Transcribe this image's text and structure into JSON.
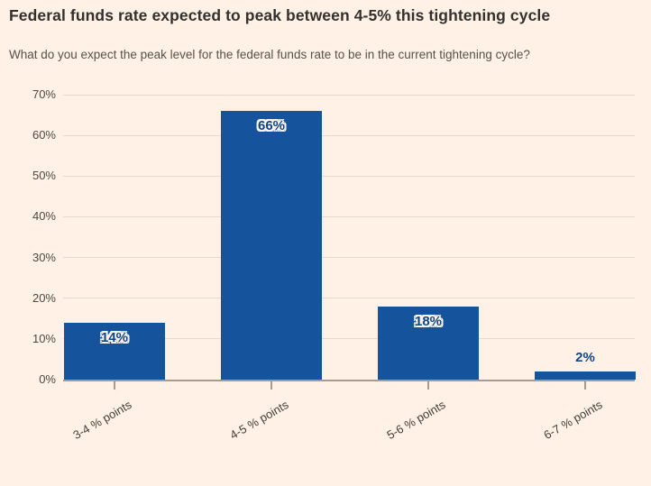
{
  "chart_data": {
    "type": "bar",
    "title": "Federal funds rate expected to peak between 4-5% this tightening cycle",
    "subtitle": "What do you expect the peak level for the federal funds rate to be in the current tightening cycle?",
    "categories": [
      "3-4 % points",
      "4-5 % points",
      "5-6 % points",
      "6-7 % points"
    ],
    "values": [
      14,
      66,
      18,
      2
    ],
    "value_labels": [
      "14%",
      "66%",
      "18%",
      "2%"
    ],
    "xlabel": "",
    "ylabel": "",
    "ylim": [
      0,
      70
    ],
    "y_ticks": [
      "0%",
      "10%",
      "20%",
      "30%",
      "40%",
      "50%",
      "60%",
      "70%"
    ],
    "grid": "horizontal",
    "legend": "none",
    "colors": {
      "background": "#fff1e5",
      "bar": "#15549c",
      "bar_label": "#0f4687",
      "title": "#33302e",
      "subtitle": "#56514b",
      "axis_text": "#4d4842",
      "gridline": "#e6d8cc",
      "axis_line": "#a49c92"
    }
  }
}
